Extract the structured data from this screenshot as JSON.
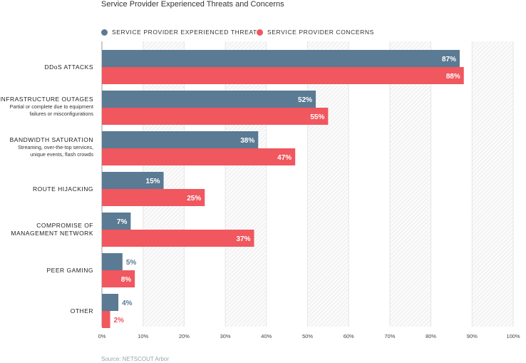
{
  "chart_data": {
    "type": "bar",
    "orientation": "horizontal",
    "title": "Service Provider Experienced Threats and Concerns",
    "categories": [
      {
        "label": "DDoS ATTACKS",
        "sub": []
      },
      {
        "label": "INFRASTRUCTURE OUTAGES",
        "sub": [
          "Partial or complete due to equipment",
          "failures or misconfigurations"
        ]
      },
      {
        "label": "BANDWIDTH SATURATION",
        "sub": [
          "Streaming, over-the-top services,",
          "unique events, flash crowds"
        ]
      },
      {
        "label": "ROUTE HIJACKING",
        "sub": []
      },
      {
        "label": "COMPROMISE OF|MANAGEMENT NETWORK",
        "sub": []
      },
      {
        "label": "PEER GAMING",
        "sub": []
      },
      {
        "label": "OTHER",
        "sub": []
      }
    ],
    "series": [
      {
        "name": "SERVICE PROVIDER EXPERIENCED THREATS",
        "color": "#5b7a93",
        "values": [
          87,
          52,
          38,
          15,
          7,
          5,
          4
        ],
        "labels": [
          "87%",
          "52%",
          "38%",
          "15%",
          "7%",
          "5%",
          "4%"
        ]
      },
      {
        "name": "SERVICE PROVIDER CONCERNS",
        "color": "#f0575e",
        "values": [
          88,
          55,
          47,
          25,
          37,
          8,
          2
        ],
        "labels": [
          "88%",
          "55%",
          "47%",
          "25%",
          "37%",
          "8%",
          "2%"
        ]
      }
    ],
    "xlim": [
      0,
      100
    ],
    "xticks": [
      0,
      10,
      20,
      30,
      40,
      50,
      60,
      70,
      80,
      90,
      100
    ],
    "xtick_labels": [
      "0%",
      "10%",
      "20%",
      "30%",
      "40%",
      "50%",
      "60%",
      "70%",
      "80%",
      "90%",
      "100%"
    ],
    "legend_position": "top-left",
    "grid": true
  },
  "source": "Source: NETSCOUT Arbor"
}
